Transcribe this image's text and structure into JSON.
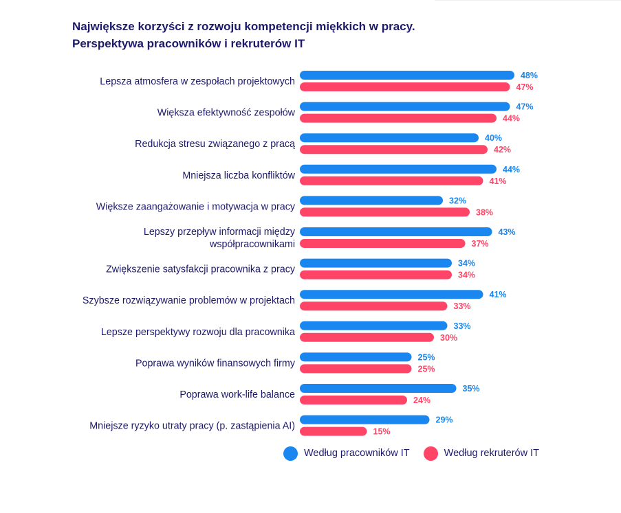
{
  "chart_data": {
    "type": "bar",
    "orientation": "horizontal",
    "title": "Największe korzyści z rozwoju kompetencji miękkich w pracy.",
    "subtitle": "Perspektywa pracowników i rekruterów IT",
    "categories": [
      [
        "Lepsza atmosfera w zespołach projektowych"
      ],
      [
        "Większa efektywność zespołów"
      ],
      [
        "Redukcja stresu związanego z pracą"
      ],
      [
        "Mniejsza liczba konfliktów"
      ],
      [
        "Większe zaangażowanie i motywacja w pracy"
      ],
      [
        "Lepszy przepływ informacji między",
        "współpracownikami"
      ],
      [
        "Zwiększenie satysfakcji pracownika z pracy"
      ],
      [
        "Szybsze rozwiązywanie problemów w projektach"
      ],
      [
        "Lepsze perspektywy rozwoju dla pracownika"
      ],
      [
        "Poprawa wyników finansowych firmy"
      ],
      [
        "Poprawa work-life balance"
      ],
      [
        "Mniejsze ryzyko utraty pracy (p. zastąpienia AI)"
      ]
    ],
    "series": [
      {
        "name": "Według pracowników IT",
        "color": "#1a86f0",
        "values": [
          48,
          47,
          40,
          44,
          32,
          43,
          34,
          41,
          33,
          25,
          35,
          29
        ]
      },
      {
        "name": "Według rekruterów IT",
        "color": "#ff4567",
        "values": [
          47,
          44,
          42,
          41,
          38,
          37,
          34,
          33,
          30,
          25,
          24,
          15
        ]
      }
    ],
    "value_suffix": "%",
    "xlim": [
      0,
      100
    ],
    "grid": false,
    "legend_position": "bottom-right"
  }
}
